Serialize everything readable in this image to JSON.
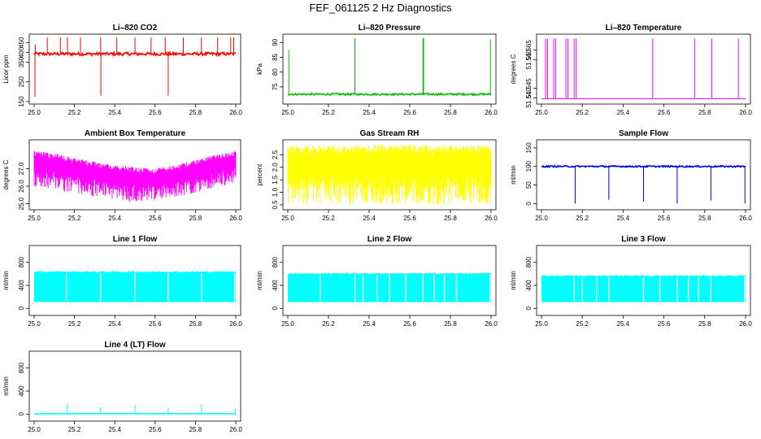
{
  "page": {
    "title": "FEF_061125  2 Hz Diagnostics"
  },
  "chart_data": [
    {
      "id": "co2",
      "type": "line",
      "title": "Li–820 CO2",
      "xlabel": "",
      "ylabel": "Licor ppm",
      "color": "#ff0000",
      "xlim": [
        25.0,
        26.0
      ],
      "ylim": [
        150,
        480
      ],
      "x_ticks": [
        25.0,
        25.2,
        25.4,
        25.6,
        25.8,
        26.0
      ],
      "x_tick_labels": [
        "25.0",
        "25.2",
        "25.4",
        "25.6",
        "25.8",
        "26.0"
      ],
      "y_ticks": [
        150,
        250,
        350,
        400,
        450
      ],
      "y_tick_labels": [
        "150",
        "250",
        "350",
        "400",
        "450"
      ],
      "baseline": 392,
      "noise": 8,
      "spikes": [
        {
          "x": 25.004,
          "y": 175
        },
        {
          "x": 25.006,
          "y": 440
        },
        {
          "x": 25.065,
          "y": 475
        },
        {
          "x": 25.13,
          "y": 475
        },
        {
          "x": 25.165,
          "y": 475
        },
        {
          "x": 25.23,
          "y": 475
        },
        {
          "x": 25.33,
          "y": 475
        },
        {
          "x": 25.331,
          "y": 180
        },
        {
          "x": 25.41,
          "y": 475
        },
        {
          "x": 25.5,
          "y": 475
        },
        {
          "x": 25.58,
          "y": 475
        },
        {
          "x": 25.65,
          "y": 475
        },
        {
          "x": 25.665,
          "y": 180
        },
        {
          "x": 25.74,
          "y": 475
        },
        {
          "x": 25.83,
          "y": 475
        },
        {
          "x": 25.91,
          "y": 475
        },
        {
          "x": 25.975,
          "y": 475
        },
        {
          "x": 25.99,
          "y": 475
        }
      ]
    },
    {
      "id": "pressure",
      "type": "line",
      "title": "Li–820 Pressure",
      "xlabel": "",
      "ylabel": "kPa",
      "color": "#00bb00",
      "xlim": [
        25.0,
        26.0
      ],
      "ylim": [
        70,
        92
      ],
      "x_ticks": [
        25.0,
        25.2,
        25.4,
        25.6,
        25.8,
        26.0
      ],
      "x_tick_labels": [
        "25.0",
        "25.2",
        "25.4",
        "25.6",
        "25.8",
        "26.0"
      ],
      "y_ticks": [
        75,
        80,
        85,
        90
      ],
      "y_tick_labels": [
        "75",
        "80",
        "85",
        "90"
      ],
      "baseline": 72.5,
      "noise": 0.3,
      "spikes": [
        {
          "x": 25.005,
          "y": 87.5
        },
        {
          "x": 25.33,
          "y": 91.5
        },
        {
          "x": 25.665,
          "y": 91.5
        },
        {
          "x": 25.668,
          "y": 91.5
        },
        {
          "x": 25.997,
          "y": 91
        }
      ]
    },
    {
      "id": "licor_temp",
      "type": "line",
      "title": "Li–820 Temperature",
      "xlabel": "",
      "ylabel": "degrees C",
      "color": "#ff00ff",
      "xlim": [
        25.0,
        26.0
      ],
      "ylim": [
        51.538,
        51.572
      ],
      "x_ticks": [
        25.0,
        25.2,
        25.4,
        25.6,
        25.8,
        26.0
      ],
      "x_tick_labels": [
        "25.0",
        "25.2",
        "25.4",
        "25.6",
        "25.8",
        "26.0"
      ],
      "y_ticks": [
        51.54,
        51.545,
        51.56,
        51.565
      ],
      "y_tick_labels": [
        "51.540",
        "51.545",
        "51.560",
        "51.565"
      ],
      "baseline": 51.5395,
      "noise": 0,
      "spikes": [
        {
          "x": 25.02,
          "y": 51.571
        },
        {
          "x": 25.03,
          "y": 51.571
        },
        {
          "x": 25.06,
          "y": 51.571
        },
        {
          "x": 25.07,
          "y": 51.571
        },
        {
          "x": 25.12,
          "y": 51.571
        },
        {
          "x": 25.13,
          "y": 51.571
        },
        {
          "x": 25.16,
          "y": 51.571
        },
        {
          "x": 25.17,
          "y": 51.571
        },
        {
          "x": 25.545,
          "y": 51.571
        },
        {
          "x": 25.75,
          "y": 51.571
        },
        {
          "x": 25.835,
          "y": 51.571
        },
        {
          "x": 25.965,
          "y": 51.571
        }
      ]
    },
    {
      "id": "ambient",
      "type": "line",
      "title": "Ambient Box Temperature",
      "xlabel": "",
      "ylabel": "degrees C",
      "color": "#ff00ff",
      "xlim": [
        25.0,
        26.0
      ],
      "ylim": [
        24.8,
        28.5
      ],
      "x_ticks": [
        25.0,
        25.2,
        25.4,
        25.6,
        25.8,
        26.0
      ],
      "x_tick_labels": [
        "25.0",
        "25.2",
        "25.4",
        "25.6",
        "25.8",
        "26.0"
      ],
      "y_ticks": [
        25.0,
        26.0,
        27.0
      ],
      "y_tick_labels": [
        "25.0",
        "26.0",
        "27.0"
      ],
      "envelope": [
        {
          "x": 25.0,
          "lo": 26.0,
          "hi": 28.0
        },
        {
          "x": 25.1,
          "lo": 25.8,
          "hi": 27.9
        },
        {
          "x": 25.2,
          "lo": 25.6,
          "hi": 27.6
        },
        {
          "x": 25.3,
          "lo": 25.4,
          "hi": 27.4
        },
        {
          "x": 25.4,
          "lo": 25.2,
          "hi": 27.2
        },
        {
          "x": 25.5,
          "lo": 25.1,
          "hi": 27.1
        },
        {
          "x": 25.6,
          "lo": 25.2,
          "hi": 27.0
        },
        {
          "x": 25.7,
          "lo": 25.4,
          "hi": 27.2
        },
        {
          "x": 25.8,
          "lo": 25.6,
          "hi": 27.5
        },
        {
          "x": 25.9,
          "lo": 25.9,
          "hi": 27.8
        },
        {
          "x": 26.0,
          "lo": 26.2,
          "hi": 28.0
        }
      ]
    },
    {
      "id": "rh",
      "type": "line",
      "title": "Gas Stream RH",
      "xlabel": "",
      "ylabel": "percent",
      "color": "#ffff00",
      "xlim": [
        25.0,
        26.0
      ],
      "ylim": [
        0.4,
        3.0
      ],
      "x_ticks": [
        25.0,
        25.2,
        25.4,
        25.6,
        25.8,
        26.0
      ],
      "x_tick_labels": [
        "25.0",
        "25.2",
        "25.4",
        "25.6",
        "25.8",
        "26.0"
      ],
      "y_ticks": [
        0.5,
        1.0,
        1.5,
        2.0,
        2.5
      ],
      "y_tick_labels": [
        "0.5",
        "1.0",
        "1.5",
        "2.0",
        "2.5"
      ],
      "envelope": [
        {
          "x": 25.0,
          "lo": 0.5,
          "hi": 2.9
        },
        {
          "x": 26.0,
          "lo": 0.5,
          "hi": 2.9
        }
      ]
    },
    {
      "id": "sample_flow",
      "type": "line",
      "title": "Sample Flow",
      "xlabel": "",
      "ylabel": "ml/min",
      "color": "#0000dd",
      "xlim": [
        25.0,
        26.0
      ],
      "ylim": [
        -10,
        165
      ],
      "x_ticks": [
        25.0,
        25.2,
        25.4,
        25.6,
        25.8,
        26.0
      ],
      "x_tick_labels": [
        "25.0",
        "25.2",
        "25.4",
        "25.6",
        "25.8",
        "26.0"
      ],
      "y_ticks": [
        0,
        50,
        100,
        150
      ],
      "y_tick_labels": [
        "0",
        "50",
        "100",
        "150"
      ],
      "baseline": 100,
      "noise": 2,
      "spikes": [
        {
          "x": 25.165,
          "y": 0
        },
        {
          "x": 25.33,
          "y": 10
        },
        {
          "x": 25.5,
          "y": 5
        },
        {
          "x": 25.665,
          "y": 0
        },
        {
          "x": 25.83,
          "y": 8
        },
        {
          "x": 25.997,
          "y": 0
        }
      ]
    },
    {
      "id": "line1",
      "type": "line",
      "title": "Line 1 Flow",
      "xlabel": "",
      "ylabel": "ml/min",
      "color": "#00ffff",
      "xlim": [
        25.0,
        26.0
      ],
      "ylim": [
        -80,
        1050
      ],
      "x_ticks": [
        25.0,
        25.2,
        25.4,
        25.6,
        25.8,
        26.0
      ],
      "x_tick_labels": [
        "25.0",
        "25.2",
        "25.4",
        "25.6",
        "25.8",
        "26.0"
      ],
      "y_ticks": [
        0,
        400,
        800
      ],
      "y_tick_labels": [
        "0",
        "400",
        "800"
      ],
      "band": {
        "lo": 110,
        "hi": 630
      },
      "gaps": [
        25.16,
        25.33,
        25.5,
        25.665,
        25.83,
        25.995
      ]
    },
    {
      "id": "line2",
      "type": "line",
      "title": "Line 2 Flow",
      "xlabel": "",
      "ylabel": "ml/min",
      "color": "#00ffff",
      "xlim": [
        25.0,
        26.0
      ],
      "ylim": [
        -80,
        1050
      ],
      "x_ticks": [
        25.0,
        25.2,
        25.4,
        25.6,
        25.8,
        26.0
      ],
      "x_tick_labels": [
        "25.0",
        "25.2",
        "25.4",
        "25.6",
        "25.8",
        "26.0"
      ],
      "y_ticks": [
        0,
        400,
        800
      ],
      "y_tick_labels": [
        "0",
        "400",
        "800"
      ],
      "band": {
        "lo": 110,
        "hi": 600
      },
      "gaps": [
        25.16,
        25.33,
        25.37,
        25.44,
        25.5,
        25.58,
        25.665,
        25.72,
        25.77,
        25.83,
        25.995
      ]
    },
    {
      "id": "line3",
      "type": "line",
      "title": "Line 3 Flow",
      "xlabel": "",
      "ylabel": "ml/min",
      "color": "#00ffff",
      "xlim": [
        25.0,
        26.0
      ],
      "ylim": [
        -80,
        1050
      ],
      "x_ticks": [
        25.0,
        25.2,
        25.4,
        25.6,
        25.8,
        26.0
      ],
      "x_tick_labels": [
        "25.0",
        "25.2",
        "25.4",
        "25.6",
        "25.8",
        "26.0"
      ],
      "y_ticks": [
        0,
        400,
        800
      ],
      "y_tick_labels": [
        "0",
        "400",
        "800"
      ],
      "band": {
        "lo": 110,
        "hi": 560
      },
      "gaps": [
        25.16,
        25.2,
        25.27,
        25.33,
        25.5,
        25.58,
        25.665,
        25.72,
        25.77,
        25.83,
        25.995
      ]
    },
    {
      "id": "line4",
      "type": "line",
      "title": "Line 4 (LT) Flow",
      "xlabel": "",
      "ylabel": "ml/min",
      "color": "#00ffff",
      "xlim": [
        25.0,
        26.0
      ],
      "ylim": [
        -80,
        1050
      ],
      "x_ticks": [
        25.0,
        25.2,
        25.4,
        25.6,
        25.8,
        26.0
      ],
      "x_tick_labels": [
        "25.0",
        "25.2",
        "25.4",
        "25.6",
        "25.8",
        "26.0"
      ],
      "y_ticks": [
        0,
        400,
        800
      ],
      "y_tick_labels": [
        "0",
        "400",
        "800"
      ],
      "baseline": 5,
      "noise": 3,
      "spikes": [
        {
          "x": 25.165,
          "y": 180
        },
        {
          "x": 25.33,
          "y": 120
        },
        {
          "x": 25.5,
          "y": 160
        },
        {
          "x": 25.665,
          "y": 100
        },
        {
          "x": 25.83,
          "y": 170
        },
        {
          "x": 25.997,
          "y": 100
        }
      ]
    }
  ]
}
